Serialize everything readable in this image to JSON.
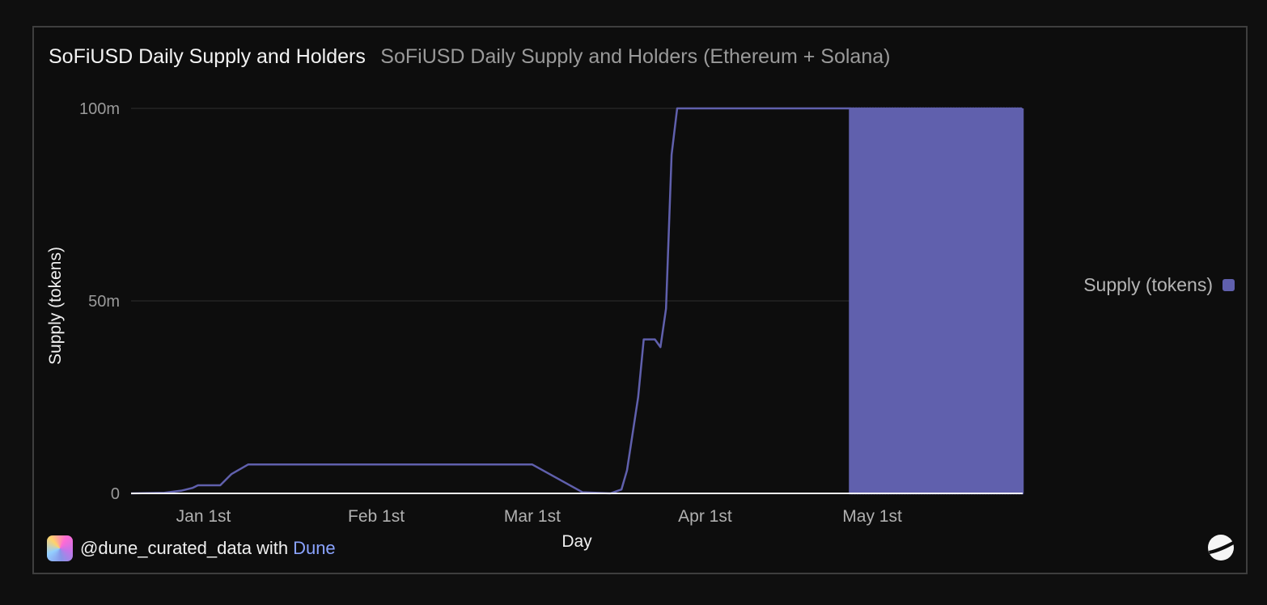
{
  "header": {
    "title": "SoFiUSD Daily Supply and Holders",
    "subtitle": "SoFiUSD Daily Supply and Holders (Ethereum + Solana)"
  },
  "footer": {
    "user": "@dune_curated_data",
    "with_text": "with",
    "brand": "Dune"
  },
  "colors": {
    "series": "#6060ad",
    "background": "#0d0d0d",
    "grid": "#2e2e2e"
  },
  "chart_data": {
    "type": "line",
    "xlabel": "Day",
    "ylabel": "Supply (tokens)",
    "ylim": [
      0,
      100000000
    ],
    "y_ticks": [
      {
        "value": 0,
        "label": "0"
      },
      {
        "value": 50000000,
        "label": "50m"
      },
      {
        "value": 100000000,
        "label": "100m"
      }
    ],
    "x_range": [
      "2024-12-19",
      "2025-05-28"
    ],
    "x_ticks": [
      {
        "date": "2025-01-01",
        "label": "Jan 1st"
      },
      {
        "date": "2025-02-01",
        "label": "Feb 1st"
      },
      {
        "date": "2025-03-01",
        "label": "Mar 1st"
      },
      {
        "date": "2025-04-01",
        "label": "Apr 1st"
      },
      {
        "date": "2025-05-01",
        "label": "May 1st"
      }
    ],
    "grid": true,
    "legend_position": "right",
    "series": [
      {
        "name": "Supply (tokens)",
        "points": [
          [
            "2024-12-19",
            0
          ],
          [
            "2024-12-25",
            150000
          ],
          [
            "2024-12-28",
            700000
          ],
          [
            "2024-12-30",
            1400000
          ],
          [
            "2024-12-31",
            2100000
          ],
          [
            "2025-01-04",
            2100000
          ],
          [
            "2025-01-06",
            5000000
          ],
          [
            "2025-01-09",
            7500000
          ],
          [
            "2025-03-01",
            7500000
          ],
          [
            "2025-03-10",
            300000
          ],
          [
            "2025-03-15",
            0
          ],
          [
            "2025-03-17",
            1000000
          ],
          [
            "2025-03-18",
            6000000
          ],
          [
            "2025-03-20",
            25000000
          ],
          [
            "2025-03-21",
            40000000
          ],
          [
            "2025-03-23",
            40000000
          ],
          [
            "2025-03-24",
            38000000
          ],
          [
            "2025-03-25",
            48000000
          ],
          [
            "2025-03-26",
            88000000
          ],
          [
            "2025-03-27",
            100000000
          ],
          [
            "2025-04-27",
            100000000
          ]
        ],
        "oscillation": {
          "start": "2025-04-27",
          "end": "2025-05-28",
          "cycles_per_day": 2,
          "low": 0,
          "high": 100000000
        }
      }
    ]
  }
}
